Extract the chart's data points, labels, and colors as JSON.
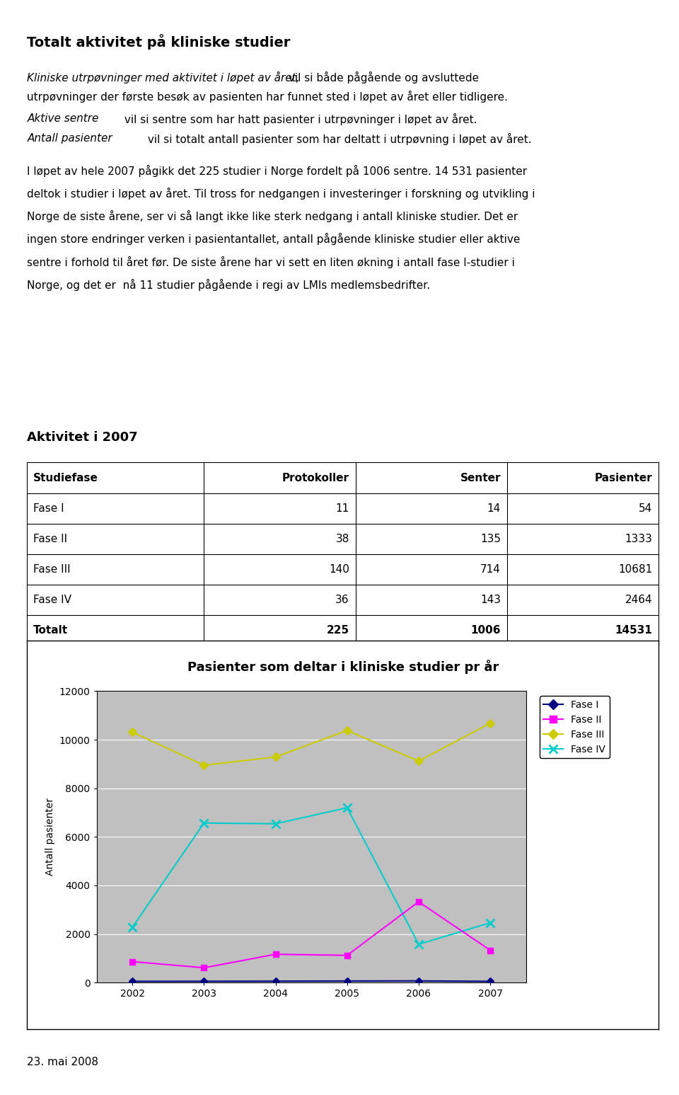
{
  "title": "Totalt aktivitet på kliniske studier",
  "paragraph1_italic": "Kliniske utrpøvninger med aktivitet i løpet av året,",
  "paragraph1_rest": " vil si både pågående og avsluttede utrpøvninger der første besøk av pasienten har funnet sted i løpet av året eller tidligere.",
  "paragraph2_italic": "Aktive sentre",
  "paragraph2_rest": " vil si sentre som har hatt pasienter i utrpøvninger i løpet av året.",
  "paragraph3_italic": "Antall pasienter",
  "paragraph3_rest": " vil si totalt antall pasienter som har deltatt i utrpøvning i løpet av året.",
  "paragraph4_lines": [
    "I løpet av hele 2007 pågikk det 225 studier i Norge fordelt på 1006 sentre. 14 531 pasienter",
    "deltok i studier i løpet av året. Til tross for nedgangen i investeringer i forskning og utvikling i",
    "Norge de siste årene, ser vi så langt ikke like sterk nedgang i antall kliniske studier. Det er",
    "ingen store endringer verken i pasientantallet, antall pågående kliniske studier eller aktive",
    "sentre i forhold til året før. De siste årene har vi sett en liten økning i antall fase I-studier i",
    "Norge, og det er  nå 11 studier pågående i regi av LMIs medlemsbedrifter."
  ],
  "table_title": "Aktivitet i 2007",
  "table_headers": [
    "Studiefase",
    "Protokoller",
    "Senter",
    "Pasienter"
  ],
  "table_rows": [
    [
      "Fase I",
      "11",
      "14",
      "54"
    ],
    [
      "Fase II",
      "38",
      "135",
      "1333"
    ],
    [
      "Fase III",
      "140",
      "714",
      "10681"
    ],
    [
      "Fase IV",
      "36",
      "143",
      "2464"
    ],
    [
      "Totalt",
      "225",
      "1006",
      "14531"
    ]
  ],
  "chart_title": "Pasienter som deltar i kliniske studier pr år",
  "chart_ylabel": "Antall pasienter",
  "years": [
    2002,
    2003,
    2004,
    2005,
    2006,
    2007
  ],
  "fase_I": [
    54,
    57,
    61,
    68,
    72,
    54
  ],
  "fase_II": [
    867,
    613,
    1168,
    1124,
    3330,
    1333
  ],
  "fase_III": [
    10310,
    8950,
    9290,
    10380,
    9120,
    10681
  ],
  "fase_IV": [
    2280,
    6570,
    6540,
    7200,
    1580,
    2464
  ],
  "fase_I_color": "#000080",
  "fase_II_color": "#ff00ff",
  "fase_III_color": "#cccc00",
  "fase_IV_color": "#00cccc",
  "chart_bg_color": "#c0c0c0",
  "footer": "23. mai 2008",
  "ylim": [
    0,
    12000
  ],
  "yticks": [
    0,
    2000,
    4000,
    6000,
    8000,
    10000,
    12000
  ]
}
